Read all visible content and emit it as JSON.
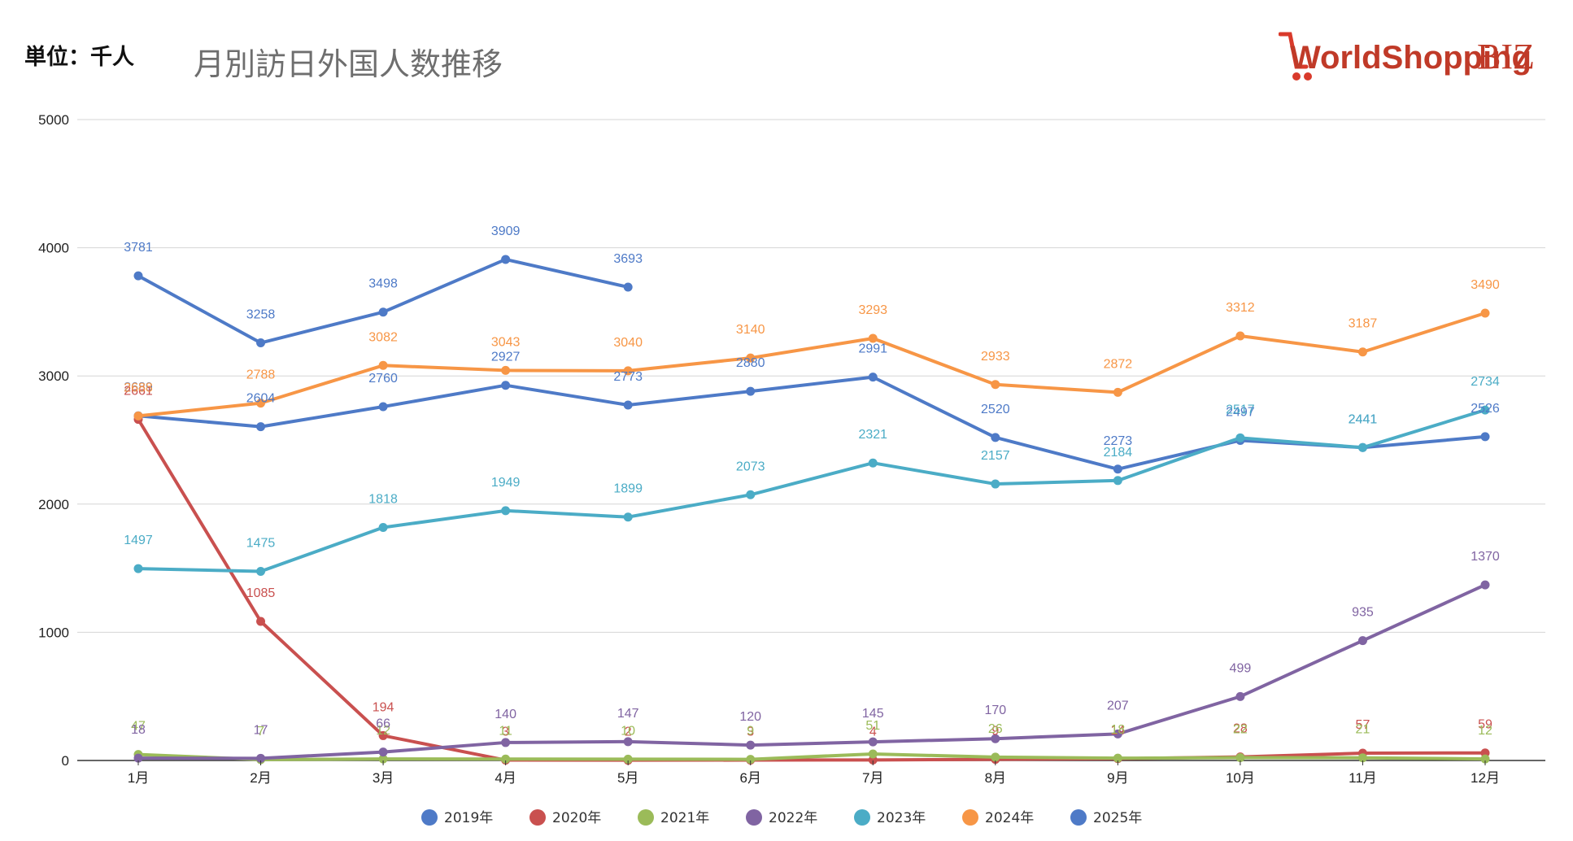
{
  "header": {
    "unit": "単位：千人",
    "title": "月別訪日外国人数推移"
  },
  "logo": {
    "text_main": "WorldShopping",
    "text_suffix": "BIZ"
  },
  "chart_data": {
    "type": "line",
    "title": "月別訪日外国人数推移",
    "ylabel": "単位：千人",
    "ylim": [
      0,
      5000
    ],
    "yticks": [
      0,
      1000,
      2000,
      3000,
      4000,
      5000
    ],
    "categories": [
      "1月",
      "2月",
      "3月",
      "4月",
      "5月",
      "6月",
      "7月",
      "8月",
      "9月",
      "10月",
      "11月",
      "12月"
    ],
    "grid": true,
    "legend_position": "bottom",
    "series": [
      {
        "name": "2019年",
        "color": "#4e7ac7",
        "values": [
          2689,
          2604,
          2760,
          2927,
          2773,
          2880,
          2991,
          2520,
          2273,
          2497,
          2441,
          2526
        ]
      },
      {
        "name": "2020年",
        "color": "#c9504f",
        "values": [
          2661,
          1085,
          194,
          3,
          2,
          3,
          4,
          9,
          14,
          28,
          57,
          59
        ]
      },
      {
        "name": "2021年",
        "color": "#9bbb59",
        "values": [
          47,
          7,
          12,
          11,
          10,
          9,
          51,
          26,
          18,
          22,
          21,
          12
        ]
      },
      {
        "name": "2022年",
        "color": "#8064a2",
        "values": [
          18,
          17,
          66,
          140,
          147,
          120,
          145,
          170,
          207,
          499,
          935,
          1370
        ]
      },
      {
        "name": "2023年",
        "color": "#4bacc6",
        "values": [
          1497,
          1475,
          1818,
          1949,
          1899,
          2073,
          2321,
          2157,
          2184,
          2517,
          2441,
          2734
        ]
      },
      {
        "name": "2024年",
        "color": "#f79646",
        "values": [
          2688,
          2788,
          3082,
          3043,
          3040,
          3140,
          3293,
          2933,
          2872,
          3312,
          3187,
          3490
        ]
      },
      {
        "name": "2025年",
        "color": "#4e7ac7",
        "values": [
          3781,
          3258,
          3498,
          3909,
          3693,
          null,
          null,
          null,
          null,
          null,
          null,
          null
        ]
      }
    ]
  }
}
